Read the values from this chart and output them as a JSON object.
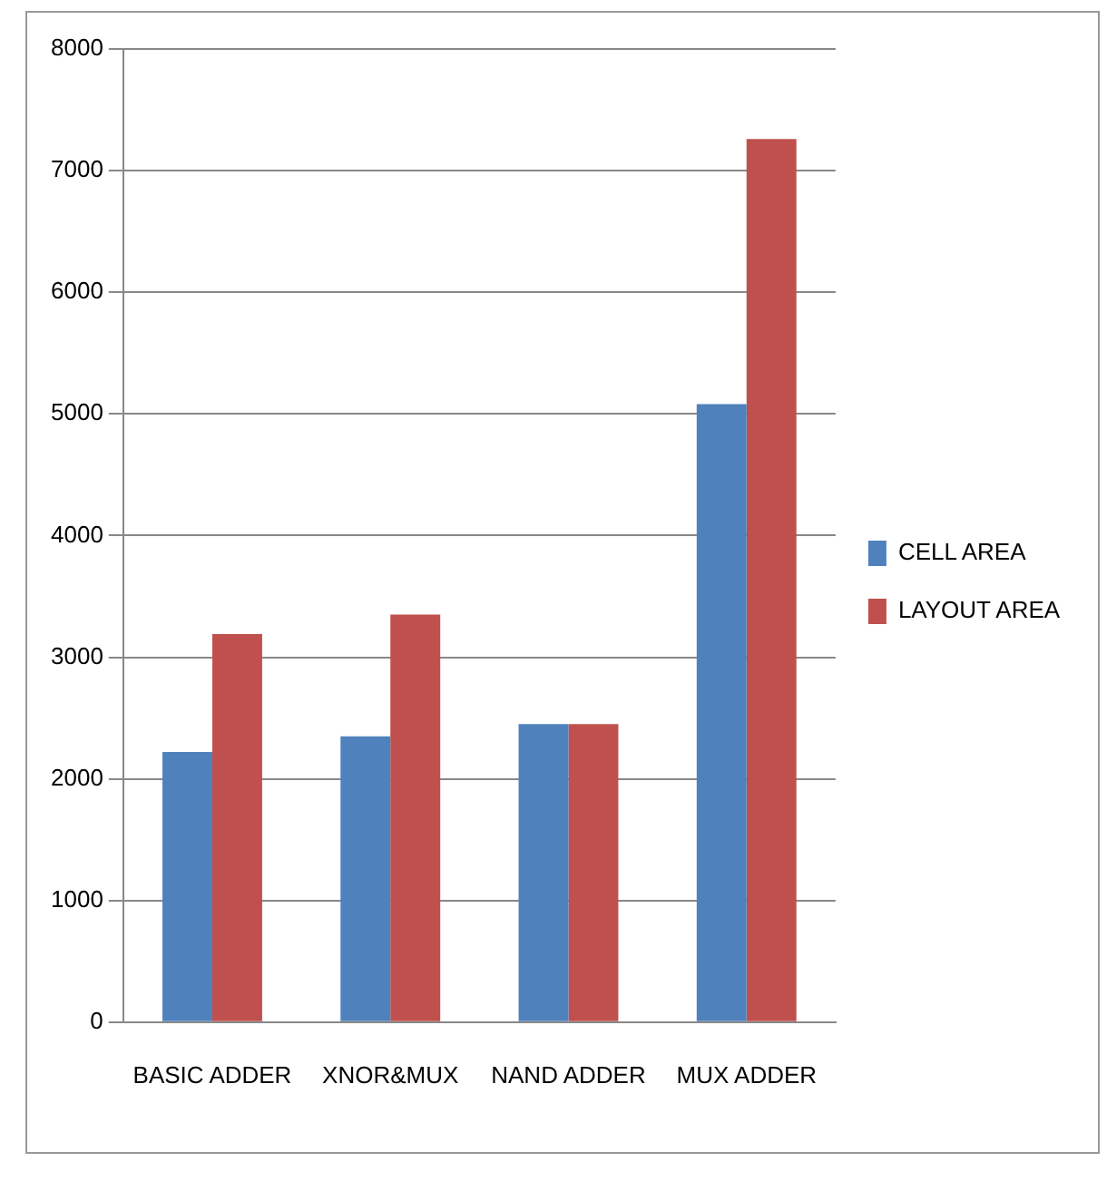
{
  "chart_data": {
    "type": "bar",
    "categories": [
      "BASIC ADDER",
      "XNOR&MUX",
      "NAND ADDER",
      "MUX ADDER"
    ],
    "series": [
      {
        "name": "CELL AREA",
        "color": "#4f81bd",
        "values": [
          2220,
          2350,
          2450,
          5080
        ]
      },
      {
        "name": "LAYOUT AREA",
        "color": "#c0504d",
        "values": [
          3190,
          3350,
          2450,
          7260
        ]
      }
    ],
    "ylim": [
      0,
      8000
    ],
    "yticks": [
      0,
      1000,
      2000,
      3000,
      4000,
      5000,
      6000,
      7000,
      8000
    ],
    "grid": "y",
    "legend": "right"
  }
}
